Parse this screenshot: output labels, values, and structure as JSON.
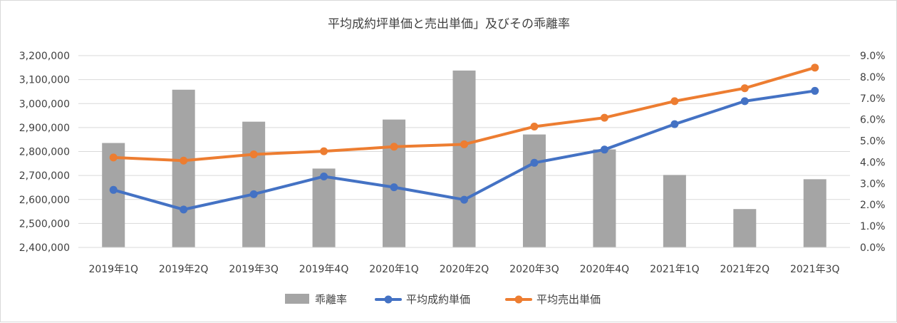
{
  "chart_data": {
    "type": "bar+line",
    "title": "平均成約坪単価と売出単価」及びその乖離率",
    "categories": [
      "2019年1Q",
      "2019年2Q",
      "2019年3Q",
      "2019年4Q",
      "2020年1Q",
      "2020年2Q",
      "2020年3Q",
      "2020年4Q",
      "2021年1Q",
      "2021年2Q",
      "2021年3Q"
    ],
    "left_axis": {
      "ylim": [
        2400000,
        3200000
      ],
      "ticks": [
        2400000,
        2500000,
        2600000,
        2700000,
        2800000,
        2900000,
        3000000,
        3100000,
        3200000
      ],
      "tick_labels": [
        "2,400,000",
        "2,500,000",
        "2,600,000",
        "2,700,000",
        "2,800,000",
        "2,900,000",
        "3,000,000",
        "3,100,000",
        "3,200,000"
      ]
    },
    "right_axis": {
      "ylim": [
        0,
        9
      ],
      "ticks": [
        0,
        1,
        2,
        3,
        4,
        5,
        6,
        7,
        8,
        9
      ],
      "tick_labels": [
        "0.0%",
        "1.0%",
        "2.0%",
        "3.0%",
        "4.0%",
        "5.0%",
        "6.0%",
        "7.0%",
        "8.0%",
        "9.0%"
      ]
    },
    "series": [
      {
        "name": "乖離率",
        "kind": "bar",
        "axis": "right",
        "color": "#a5a5a5",
        "values": [
          4.9,
          7.4,
          5.9,
          3.7,
          6.0,
          8.3,
          5.3,
          4.6,
          3.4,
          1.8,
          3.2
        ]
      },
      {
        "name": "平均成約単価",
        "kind": "line",
        "axis": "left",
        "color": "#4472c4",
        "values": [
          2640000,
          2558000,
          2622000,
          2696000,
          2651000,
          2599000,
          2753000,
          2808000,
          2914000,
          3010000,
          3053000
        ]
      },
      {
        "name": "平均売出単価",
        "kind": "line",
        "axis": "left",
        "color": "#ed7d31",
        "values": [
          2775000,
          2762000,
          2788000,
          2801000,
          2820000,
          2830000,
          2904000,
          2941000,
          3010000,
          3064000,
          3150000
        ]
      }
    ],
    "grid": true,
    "legend_position": "bottom"
  }
}
